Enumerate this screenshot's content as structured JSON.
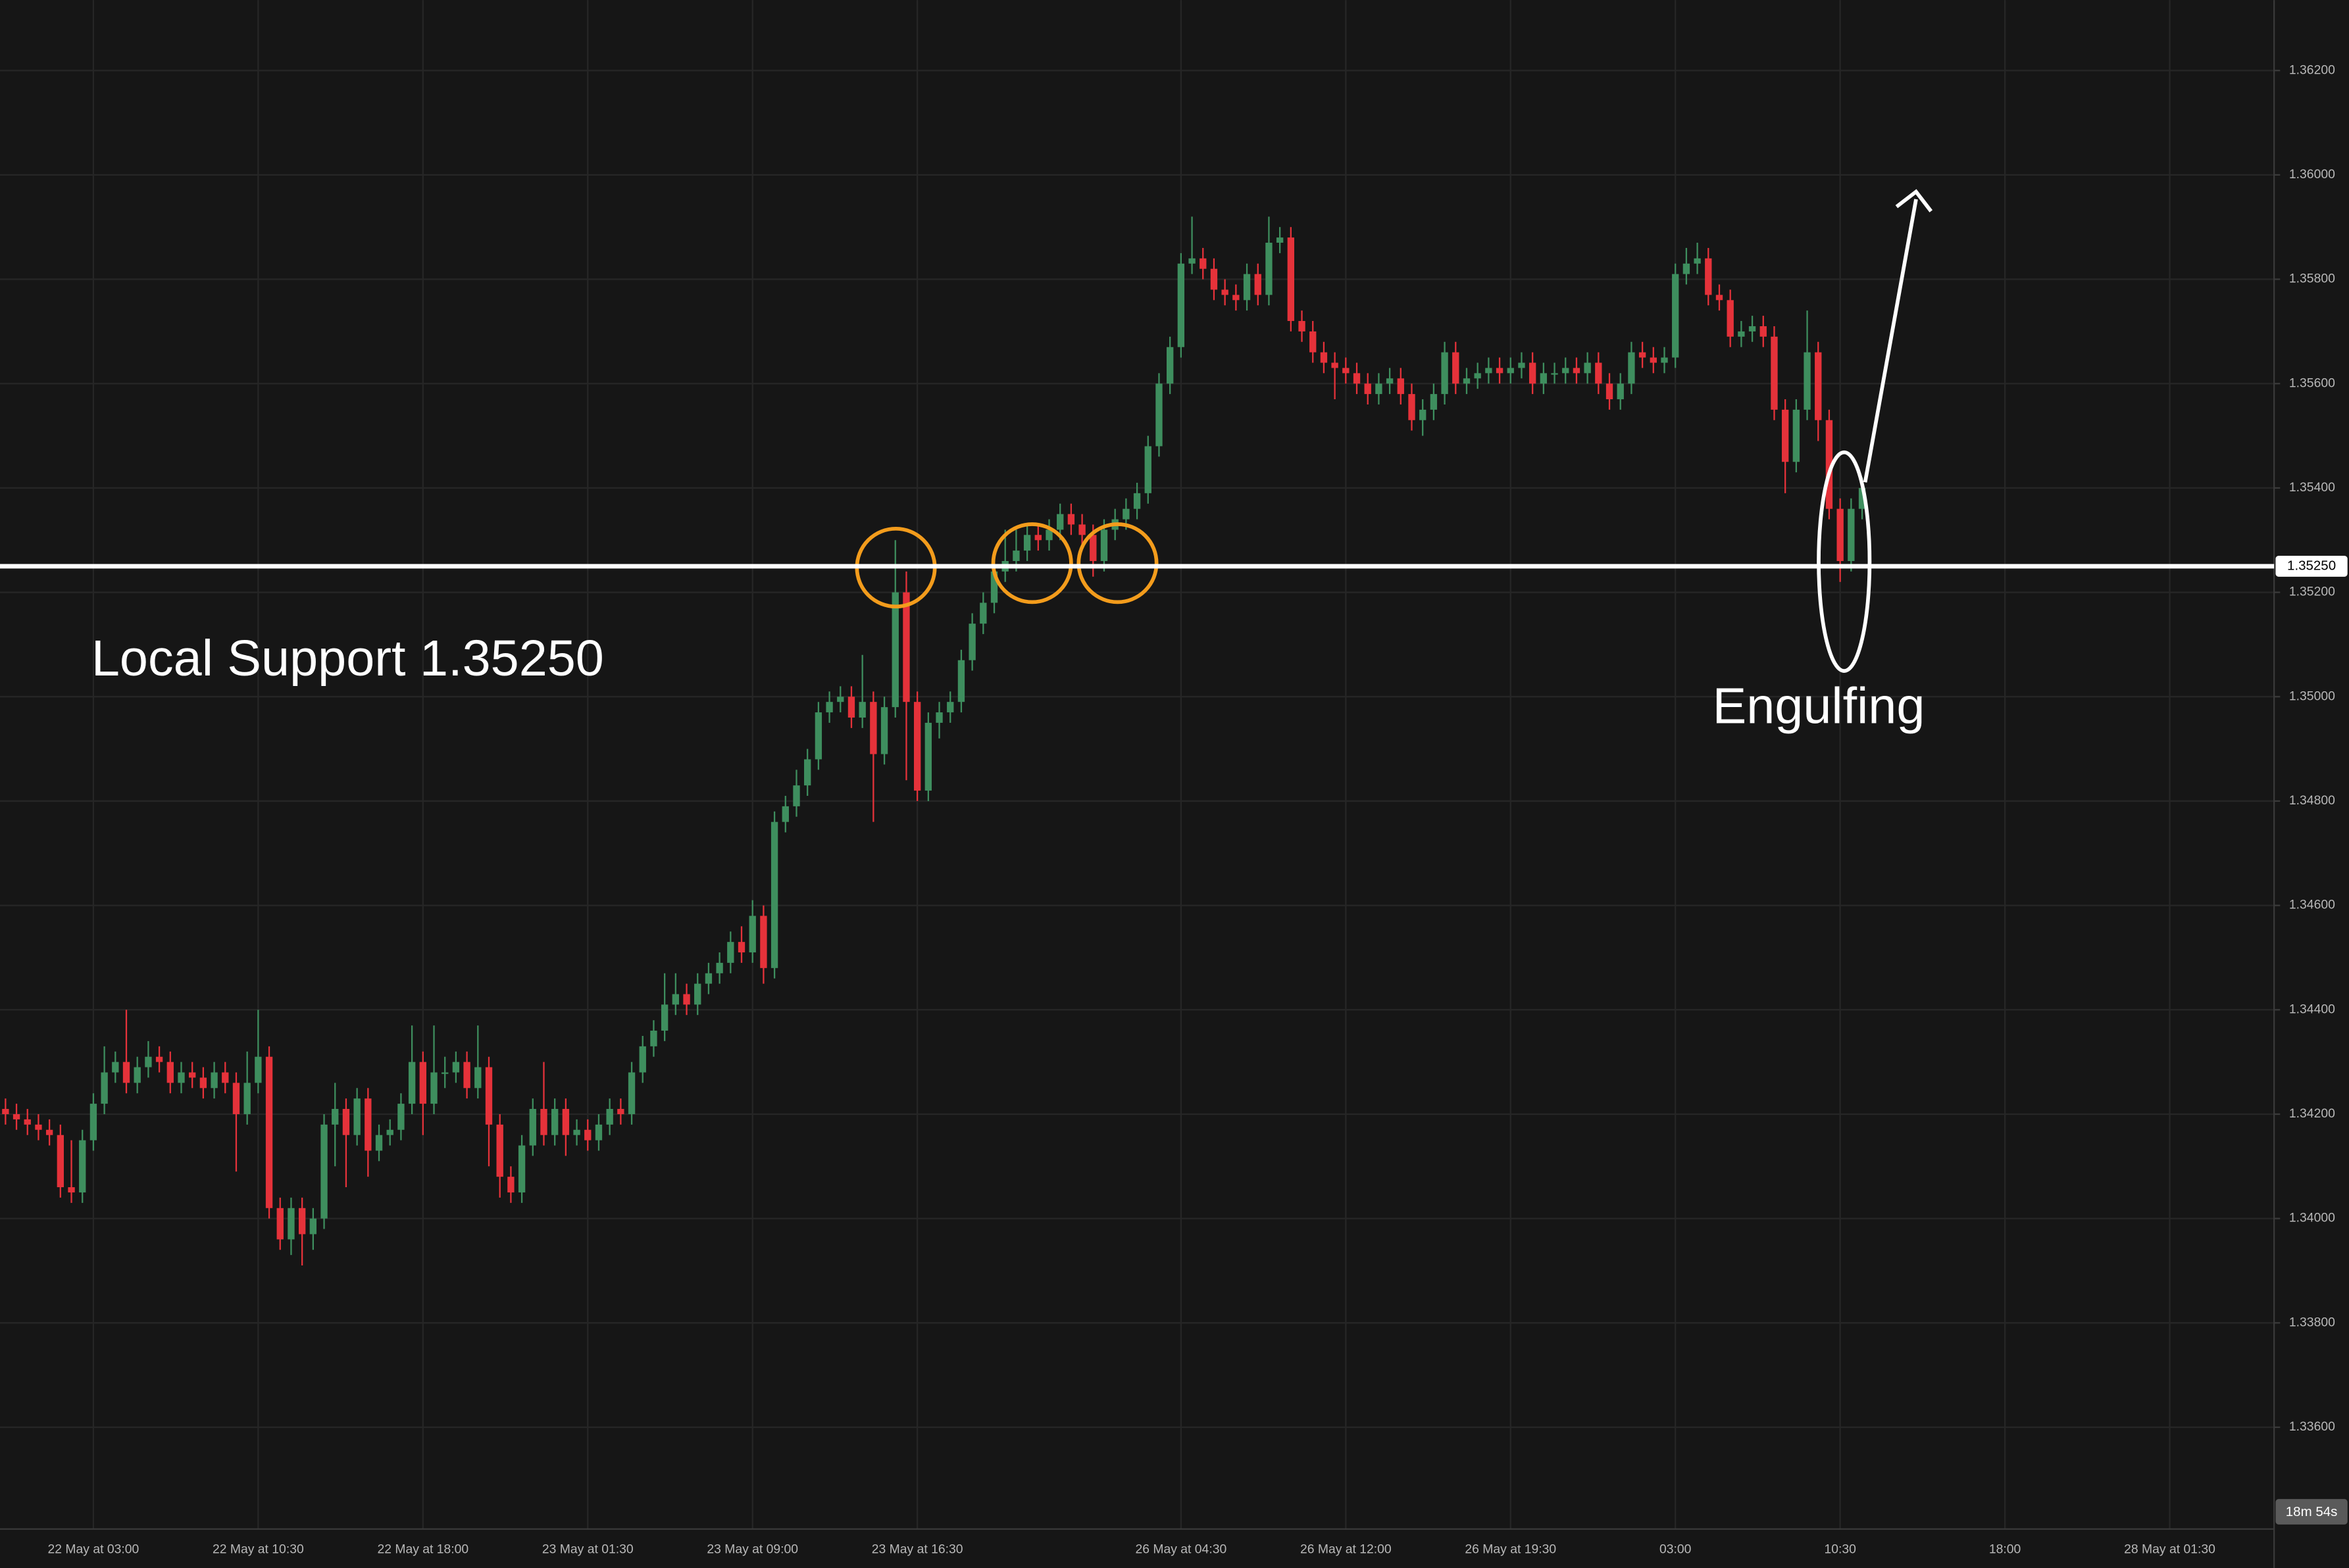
{
  "chart_data": {
    "type": "candlestick",
    "up_color": "#3e8e5e",
    "down_color": "#e5323a",
    "grid": true,
    "ylim": [
      1.33405,
      1.36335
    ],
    "yticks": [
      {
        "value": 1.336,
        "label": "1.33600"
      },
      {
        "value": 1.338,
        "label": "1.33800"
      },
      {
        "value": 1.34,
        "label": "1.34000"
      },
      {
        "value": 1.342,
        "label": "1.34200"
      },
      {
        "value": 1.344,
        "label": "1.34400"
      },
      {
        "value": 1.346,
        "label": "1.34600"
      },
      {
        "value": 1.348,
        "label": "1.34800"
      },
      {
        "value": 1.35,
        "label": "1.35000"
      },
      {
        "value": 1.352,
        "label": "1.35200"
      },
      {
        "value": 1.354,
        "label": "1.35400"
      },
      {
        "value": 1.356,
        "label": "1.35600"
      },
      {
        "value": 1.358,
        "label": "1.35800"
      },
      {
        "value": 1.36,
        "label": "1.36000"
      },
      {
        "value": 1.362,
        "label": "1.36200"
      }
    ],
    "xlim": [
      -0.5,
      206.5
    ],
    "xticks": [
      {
        "value": 8,
        "label": "22 May at 03:00"
      },
      {
        "value": 23,
        "label": "22 May at 10:30"
      },
      {
        "value": 38,
        "label": "22 May at 18:00"
      },
      {
        "value": 53,
        "label": "23 May at 01:30"
      },
      {
        "value": 68,
        "label": "23 May at 09:00"
      },
      {
        "value": 83,
        "label": "23 May at 16:30"
      },
      {
        "value": 107,
        "label": "26 May at 04:30"
      },
      {
        "value": 122,
        "label": "26 May at 12:00"
      },
      {
        "value": 137,
        "label": "26 May at 19:30"
      },
      {
        "value": 152,
        "label": "03:00"
      },
      {
        "value": 167,
        "label": "10:30"
      },
      {
        "value": 182,
        "label": "18:00"
      },
      {
        "value": 197,
        "label": "28 May at 01:30"
      }
    ],
    "support_line": {
      "value": 1.3525,
      "label": "1.35250",
      "color": "#ffffff"
    },
    "countdown": "18m 54s",
    "annotations": [
      {
        "text": "Local Support 1.35250"
      },
      {
        "text": "Engulfing"
      }
    ],
    "open": [
      1.3421,
      1.342,
      1.3419,
      1.3418,
      1.3417,
      1.3416,
      1.3406,
      1.3405,
      1.3415,
      1.3422,
      1.3428,
      1.343,
      1.3426,
      1.3429,
      1.3431,
      1.343,
      1.3426,
      1.3428,
      1.3427,
      1.3425,
      1.3428,
      1.3426,
      1.342,
      1.3426,
      1.3431,
      1.3402,
      1.3396,
      1.3402,
      1.3397,
      1.34,
      1.3418,
      1.3421,
      1.3416,
      1.3423,
      1.3413,
      1.3416,
      1.3417,
      1.3422,
      1.343,
      1.3422,
      1.3428,
      1.3428,
      1.343,
      1.3425,
      1.3429,
      1.3418,
      1.3408,
      1.3405,
      1.3414,
      1.3421,
      1.3416,
      1.3421,
      1.3416,
      1.3417,
      1.3415,
      1.3418,
      1.3421,
      1.342,
      1.3428,
      1.3433,
      1.3436,
      1.3441,
      1.3443,
      1.3441,
      1.3445,
      1.3447,
      1.3449,
      1.3453,
      1.3451,
      1.3458,
      1.3448,
      1.3476,
      1.3479,
      1.3483,
      1.3488,
      1.3497,
      1.3499,
      1.35,
      1.3496,
      1.3499,
      1.3489,
      1.3498,
      1.352,
      1.3499,
      1.3482,
      1.3495,
      1.3497,
      1.3499,
      1.3507,
      1.3514,
      1.3518,
      1.3524,
      1.3526,
      1.3528,
      1.3531,
      1.353,
      1.3532,
      1.3535,
      1.3533,
      1.3531,
      1.3526,
      1.3532,
      1.3534,
      1.3536,
      1.3539,
      1.3548,
      1.356,
      1.3567,
      1.3583,
      1.3584,
      1.3582,
      1.3578,
      1.3577,
      1.3576,
      1.3581,
      1.3577,
      1.3587,
      1.3588,
      1.3572,
      1.357,
      1.3566,
      1.3564,
      1.3563,
      1.3562,
      1.356,
      1.3558,
      1.356,
      1.3561,
      1.3558,
      1.3553,
      1.3555,
      1.3558,
      1.3566,
      1.356,
      1.3561,
      1.3562,
      1.3563,
      1.3562,
      1.3563,
      1.3564,
      1.356,
      1.3562,
      1.3562,
      1.3563,
      1.3562,
      1.3564,
      1.356,
      1.3557,
      1.356,
      1.3566,
      1.3565,
      1.3564,
      1.3565,
      1.3581,
      1.3583,
      1.3584,
      1.3577,
      1.3576,
      1.3569,
      1.357,
      1.3571,
      1.3569,
      1.3555,
      1.3545,
      1.3555,
      1.3566,
      1.3553,
      1.3536,
      1.3526,
      1.3536
    ],
    "high": [
      1.3423,
      1.3422,
      1.3421,
      1.342,
      1.3419,
      1.3418,
      1.3415,
      1.3417,
      1.3424,
      1.3433,
      1.3432,
      1.344,
      1.3431,
      1.3434,
      1.3433,
      1.3432,
      1.343,
      1.343,
      1.3429,
      1.343,
      1.343,
      1.3428,
      1.3432,
      1.344,
      1.3433,
      1.3404,
      1.3404,
      1.3404,
      1.3402,
      1.342,
      1.3426,
      1.3423,
      1.3425,
      1.3425,
      1.3418,
      1.3419,
      1.3424,
      1.3437,
      1.3432,
      1.3437,
      1.3431,
      1.3432,
      1.3432,
      1.3437,
      1.3431,
      1.342,
      1.341,
      1.3416,
      1.3423,
      1.343,
      1.3423,
      1.3423,
      1.3419,
      1.3419,
      1.342,
      1.3423,
      1.3423,
      1.343,
      1.3435,
      1.3438,
      1.3447,
      1.3447,
      1.3445,
      1.3447,
      1.3449,
      1.3451,
      1.3455,
      1.3456,
      1.3461,
      1.346,
      1.3478,
      1.3481,
      1.3486,
      1.349,
      1.3499,
      1.3501,
      1.3502,
      1.3502,
      1.3508,
      1.3501,
      1.35,
      1.353,
      1.3524,
      1.3501,
      1.3497,
      1.3499,
      1.3501,
      1.3509,
      1.3516,
      1.352,
      1.3526,
      1.3532,
      1.3532,
      1.3533,
      1.3533,
      1.3534,
      1.3537,
      1.3537,
      1.3535,
      1.3533,
      1.3534,
      1.3536,
      1.3538,
      1.3541,
      1.355,
      1.3562,
      1.3569,
      1.3585,
      1.3592,
      1.3586,
      1.3584,
      1.358,
      1.3579,
      1.3583,
      1.3583,
      1.3592,
      1.359,
      1.359,
      1.3574,
      1.3572,
      1.3568,
      1.3566,
      1.3565,
      1.3564,
      1.3562,
      1.3562,
      1.3563,
      1.3563,
      1.356,
      1.3557,
      1.356,
      1.3568,
      1.3568,
      1.3563,
      1.3564,
      1.3565,
      1.3565,
      1.3565,
      1.3566,
      1.3566,
      1.3564,
      1.3564,
      1.3565,
      1.3565,
      1.3566,
      1.3566,
      1.3562,
      1.3562,
      1.3568,
      1.3568,
      1.3567,
      1.3567,
      1.3583,
      1.3586,
      1.3587,
      1.3586,
      1.3579,
      1.3578,
      1.3572,
      1.3573,
      1.3573,
      1.3571,
      1.3557,
      1.3557,
      1.3574,
      1.3568,
      1.3555,
      1.3538,
      1.3538,
      1.3542
    ],
    "low": [
      1.3418,
      1.3417,
      1.3416,
      1.3415,
      1.3414,
      1.3404,
      1.3403,
      1.3403,
      1.3413,
      1.342,
      1.3426,
      1.3424,
      1.3424,
      1.3427,
      1.3428,
      1.3424,
      1.3424,
      1.3425,
      1.3423,
      1.3423,
      1.3424,
      1.3409,
      1.3418,
      1.3424,
      1.34,
      1.3394,
      1.3393,
      1.3391,
      1.3394,
      1.3398,
      1.341,
      1.3406,
      1.3414,
      1.3408,
      1.3411,
      1.3414,
      1.3415,
      1.342,
      1.3416,
      1.342,
      1.3425,
      1.3426,
      1.3423,
      1.3423,
      1.341,
      1.3404,
      1.3403,
      1.3403,
      1.3412,
      1.3414,
      1.3414,
      1.3412,
      1.3414,
      1.3413,
      1.3413,
      1.3416,
      1.3418,
      1.3418,
      1.3426,
      1.3431,
      1.3434,
      1.3439,
      1.3439,
      1.3439,
      1.3443,
      1.3445,
      1.3447,
      1.3449,
      1.3449,
      1.3445,
      1.3446,
      1.3474,
      1.3477,
      1.3481,
      1.3486,
      1.3495,
      1.3497,
      1.3494,
      1.3494,
      1.3476,
      1.3487,
      1.3496,
      1.3484,
      1.348,
      1.348,
      1.3492,
      1.3495,
      1.3497,
      1.3505,
      1.3512,
      1.3516,
      1.3522,
      1.3524,
      1.3526,
      1.3528,
      1.3528,
      1.353,
      1.3531,
      1.3529,
      1.3523,
      1.3524,
      1.353,
      1.3532,
      1.3534,
      1.3537,
      1.3546,
      1.3558,
      1.3565,
      1.3581,
      1.358,
      1.3576,
      1.3575,
      1.3574,
      1.3574,
      1.3575,
      1.3575,
      1.3585,
      1.357,
      1.3568,
      1.3564,
      1.3562,
      1.3557,
      1.356,
      1.3558,
      1.3556,
      1.3556,
      1.3558,
      1.3556,
      1.3551,
      1.355,
      1.3553,
      1.3556,
      1.3558,
      1.3558,
      1.3559,
      1.356,
      1.356,
      1.356,
      1.3561,
      1.3558,
      1.3558,
      1.356,
      1.356,
      1.356,
      1.356,
      1.3558,
      1.3555,
      1.3555,
      1.3558,
      1.3563,
      1.3562,
      1.3562,
      1.3563,
      1.3579,
      1.3581,
      1.3575,
      1.3574,
      1.3567,
      1.3567,
      1.3568,
      1.3567,
      1.3553,
      1.3539,
      1.3543,
      1.3553,
      1.3549,
      1.3534,
      1.3522,
      1.3524,
      1.3534
    ],
    "close": [
      1.342,
      1.3419,
      1.3418,
      1.3417,
      1.3416,
      1.3406,
      1.3405,
      1.3415,
      1.3422,
      1.3428,
      1.343,
      1.3426,
      1.3429,
      1.3431,
      1.343,
      1.3426,
      1.3428,
      1.3427,
      1.3425,
      1.3428,
      1.3426,
      1.342,
      1.3426,
      1.3431,
      1.3402,
      1.3396,
      1.3402,
      1.3397,
      1.34,
      1.3418,
      1.3421,
      1.3416,
      1.3423,
      1.3413,
      1.3416,
      1.3417,
      1.3422,
      1.343,
      1.3422,
      1.3428,
      1.3428,
      1.343,
      1.3425,
      1.3429,
      1.3418,
      1.3408,
      1.3405,
      1.3414,
      1.3421,
      1.3416,
      1.3421,
      1.3416,
      1.3417,
      1.3415,
      1.3418,
      1.3421,
      1.342,
      1.3428,
      1.3433,
      1.3436,
      1.3441,
      1.3443,
      1.3441,
      1.3445,
      1.3447,
      1.3449,
      1.3453,
      1.3451,
      1.3458,
      1.3448,
      1.3476,
      1.3479,
      1.3483,
      1.3488,
      1.3497,
      1.3499,
      1.35,
      1.3496,
      1.3499,
      1.3489,
      1.3498,
      1.352,
      1.3499,
      1.3482,
      1.3495,
      1.3497,
      1.3499,
      1.3507,
      1.3514,
      1.3518,
      1.3524,
      1.3526,
      1.3528,
      1.3531,
      1.353,
      1.3532,
      1.3535,
      1.3533,
      1.3531,
      1.3526,
      1.3532,
      1.3534,
      1.3536,
      1.3539,
      1.3548,
      1.356,
      1.3567,
      1.3583,
      1.3584,
      1.3582,
      1.3578,
      1.3577,
      1.3576,
      1.3581,
      1.3577,
      1.3587,
      1.3588,
      1.3572,
      1.357,
      1.3566,
      1.3564,
      1.3563,
      1.3562,
      1.356,
      1.3558,
      1.356,
      1.3561,
      1.3558,
      1.3553,
      1.3555,
      1.3558,
      1.3566,
      1.356,
      1.3561,
      1.3562,
      1.3563,
      1.3562,
      1.3563,
      1.3564,
      1.356,
      1.3562,
      1.3562,
      1.3563,
      1.3562,
      1.3564,
      1.356,
      1.3557,
      1.356,
      1.3566,
      1.3565,
      1.3564,
      1.3565,
      1.3581,
      1.3583,
      1.3584,
      1.3577,
      1.3576,
      1.3569,
      1.357,
      1.3571,
      1.3569,
      1.3555,
      1.3545,
      1.3555,
      1.3566,
      1.3553,
      1.3536,
      1.3526,
      1.3536,
      1.354
    ]
  }
}
